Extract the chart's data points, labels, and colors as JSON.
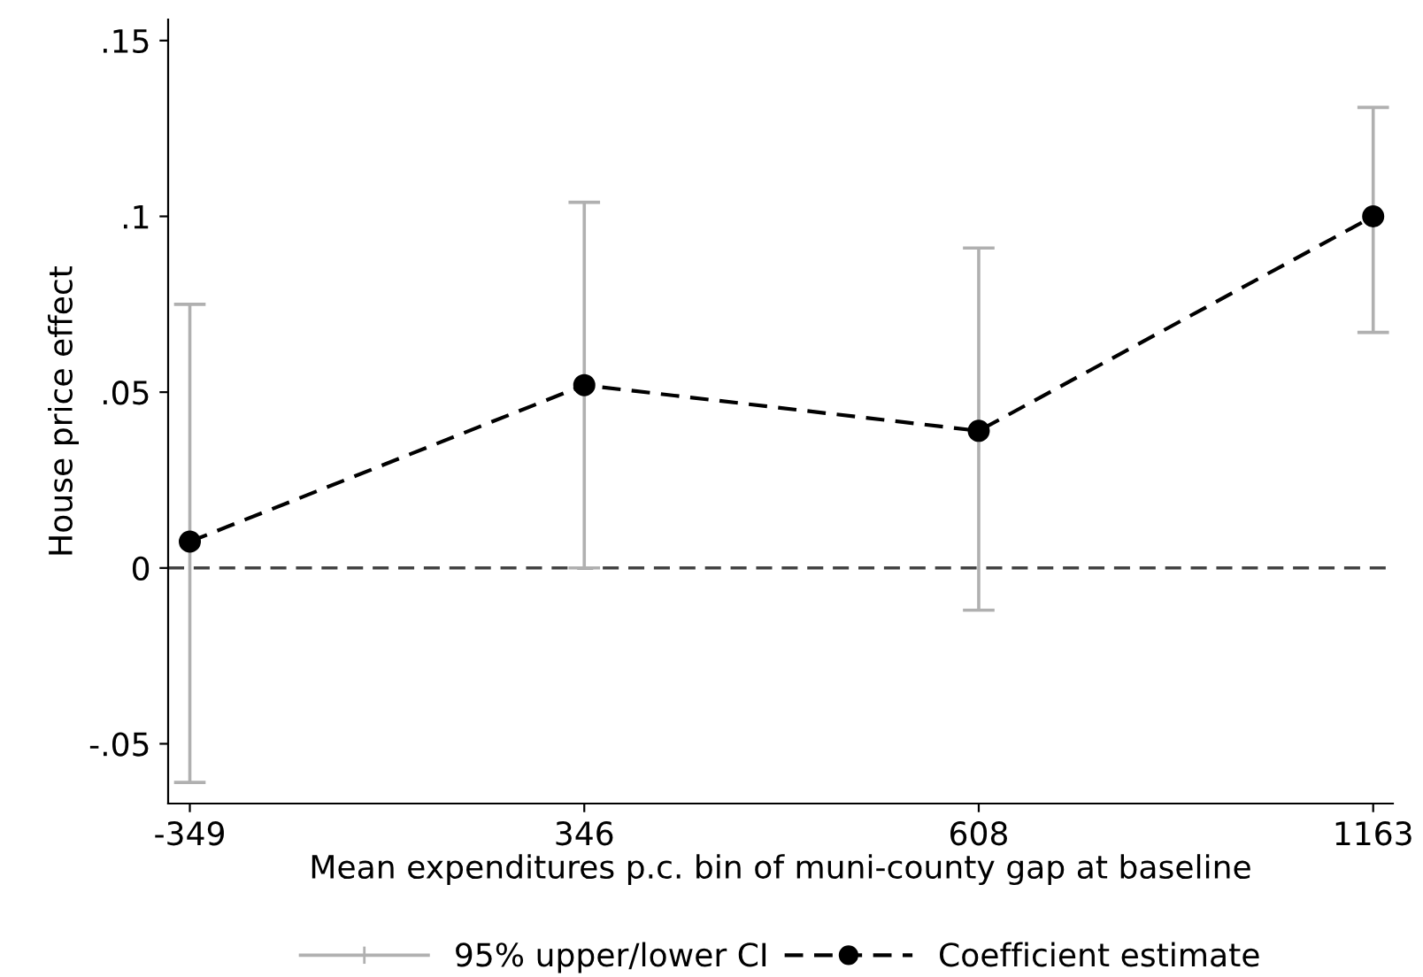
{
  "chart_data": {
    "type": "line",
    "xlabel": "Mean expenditures p.c. bin of muni-county gap at baseline",
    "ylabel": "House price effect",
    "categories": [
      "-349",
      "346",
      "608",
      "1163"
    ],
    "series": [
      {
        "name": "Coefficient estimate",
        "color": "#000000",
        "values": [
          0.0075,
          0.052,
          0.039,
          0.1
        ],
        "errors": [
          [
            -0.061,
            0.075
          ],
          [
            0.0,
            0.104
          ],
          [
            -0.012,
            0.091
          ],
          [
            0.067,
            0.131
          ]
        ],
        "marker": "circle",
        "line_style": "dashed"
      }
    ],
    "ylim": [
      -0.067,
      0.156
    ],
    "yticks": [
      {
        "value": -0.05,
        "label": "-.05"
      },
      0,
      {
        "value": 0.05,
        "label": ".05"
      },
      {
        "value": 0.1,
        "label": ".1"
      },
      {
        "value": 0.15,
        "label": ".15"
      }
    ],
    "ref_lines": [
      {
        "axis": "y",
        "value": 0,
        "color": "#444444",
        "line_style": "dashed"
      }
    ],
    "annotations": [
      "95% upper/lower CI"
    ],
    "grid": false,
    "legend": "bottom"
  }
}
